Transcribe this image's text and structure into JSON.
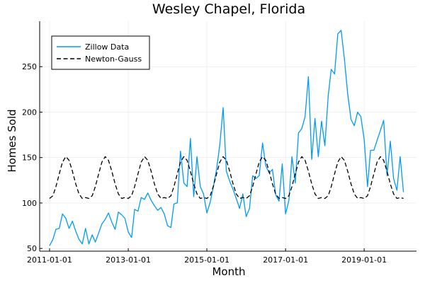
{
  "colors": {
    "zillow": "#009af9",
    "newton": "#000000",
    "grid": "#e6e6e6",
    "axis": "#000000"
  },
  "chart_data": {
    "type": "line",
    "title": "Wesley Chapel, Florida",
    "xlabel": "Month",
    "ylabel": "Homes Sold",
    "grid": true,
    "legend_position": "top-left",
    "xlim": [
      "2010-10-01",
      "2020-05-01"
    ],
    "ylim": [
      47,
      300
    ],
    "x_ticks": [
      "2011-01-01",
      "2013-01-01",
      "2015-01-01",
      "2017-01-01",
      "2019-01-01"
    ],
    "y_ticks": [
      50,
      100,
      150,
      200,
      250
    ],
    "series": [
      {
        "name": "Zillow Data",
        "style": "solid",
        "color": "#009af9",
        "start": "2011-01-01",
        "frequency": "monthly",
        "values": [
          53,
          60,
          71,
          72,
          88,
          83,
          72,
          80,
          69,
          60,
          55,
          72,
          55,
          65,
          57,
          67,
          77,
          82,
          89,
          79,
          71,
          90,
          87,
          83,
          68,
          62,
          93,
          91,
          106,
          104,
          111,
          103,
          97,
          92,
          95,
          88,
          75,
          73,
          99,
          100,
          157,
          122,
          118,
          171,
          107,
          151,
          118,
          110,
          89,
          101,
          117,
          137,
          164,
          205,
          135,
          124,
          115,
          105,
          94,
          110,
          85,
          94,
          130,
          127,
          130,
          166,
          141,
          133,
          137,
          109,
          102,
          143,
          88,
          103,
          151,
          122,
          177,
          182,
          195,
          239,
          148,
          193,
          151,
          190,
          163,
          218,
          247,
          242,
          286,
          290,
          259,
          220,
          192,
          185,
          200,
          195,
          170,
          118,
          158,
          158,
          169,
          180,
          191,
          130,
          168,
          127,
          114,
          151,
          112
        ]
      },
      {
        "name": "Newton-Gauss",
        "style": "dashed",
        "color": "#000000",
        "start": "2011-01-01",
        "frequency": "monthly",
        "values": [
          105,
          108,
          118,
          132,
          145,
          151,
          147,
          135,
          121,
          110,
          105,
          106,
          105,
          108,
          118,
          132,
          145,
          151,
          147,
          135,
          121,
          110,
          105,
          106,
          105,
          108,
          118,
          132,
          145,
          151,
          147,
          135,
          121,
          110,
          105,
          106,
          105,
          108,
          118,
          132,
          145,
          151,
          147,
          135,
          121,
          110,
          105,
          106,
          105,
          108,
          118,
          132,
          145,
          151,
          147,
          135,
          121,
          110,
          105,
          106,
          105,
          108,
          118,
          132,
          145,
          151,
          147,
          135,
          121,
          110,
          105,
          106,
          105,
          108,
          118,
          132,
          145,
          151,
          147,
          135,
          121,
          110,
          105,
          106,
          105,
          108,
          118,
          132,
          145,
          151,
          147,
          135,
          121,
          110,
          105,
          106,
          105,
          108,
          118,
          132,
          145,
          151,
          147,
          135,
          121,
          110,
          105,
          106,
          105
        ]
      }
    ]
  }
}
